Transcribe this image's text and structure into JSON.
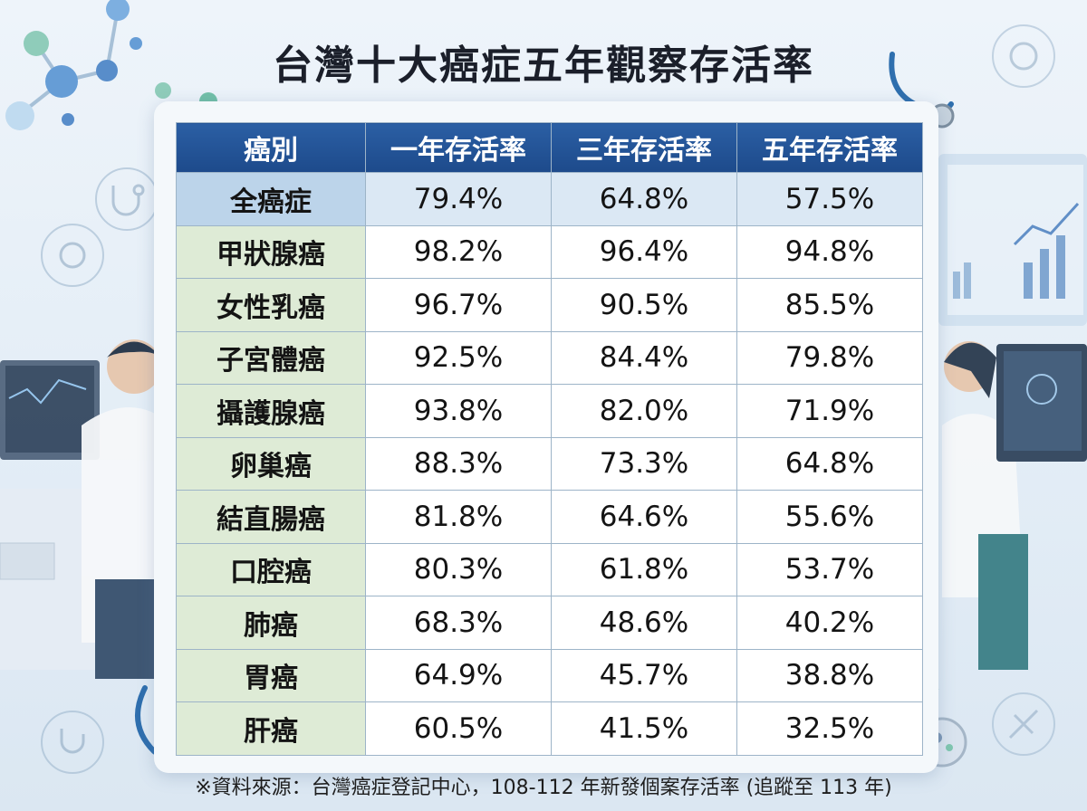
{
  "title": "台灣十大癌症五年觀察存活率",
  "chart_data": {
    "type": "table",
    "columns": [
      "癌別",
      "一年存活率",
      "三年存活率",
      "五年存活率"
    ],
    "rows": [
      {
        "cancer": "全癌症",
        "values": [
          "79.4%",
          "64.8%",
          "57.5%"
        ]
      },
      {
        "cancer": "甲狀腺癌",
        "values": [
          "98.2%",
          "96.4%",
          "94.8%"
        ]
      },
      {
        "cancer": "女性乳癌",
        "values": [
          "96.7%",
          "90.5%",
          "85.5%"
        ]
      },
      {
        "cancer": "子宮體癌",
        "values": [
          "92.5%",
          "84.4%",
          "79.8%"
        ]
      },
      {
        "cancer": "攝護腺癌",
        "values": [
          "93.8%",
          "82.0%",
          "71.9%"
        ]
      },
      {
        "cancer": "卵巢癌",
        "values": [
          "88.3%",
          "73.3%",
          "64.8%"
        ]
      },
      {
        "cancer": "結直腸癌",
        "values": [
          "81.8%",
          "64.6%",
          "55.6%"
        ]
      },
      {
        "cancer": "口腔癌",
        "values": [
          "80.3%",
          "61.8%",
          "53.7%"
        ]
      },
      {
        "cancer": "肺癌",
        "values": [
          "68.3%",
          "48.6%",
          "40.2%"
        ]
      },
      {
        "cancer": "胃癌",
        "values": [
          "64.9%",
          "45.7%",
          "38.8%"
        ]
      },
      {
        "cancer": "肝癌",
        "values": [
          "60.5%",
          "41.5%",
          "32.5%"
        ]
      }
    ]
  },
  "footnote": "※資料來源：台灣癌症登記中心，108-112 年新發個案存活率 (追蹤至 113 年)",
  "colors": {
    "header_blue": "#1d4a8b",
    "highlight_row": "#bcd4ea",
    "rowhead_green": "#deebd6"
  },
  "decorations": [
    "molecule-icon",
    "stethoscope-icon",
    "virus-icon",
    "doctor-illustration",
    "monitor-chart-illustration",
    "dna-icon",
    "microscope-cell-icon"
  ]
}
